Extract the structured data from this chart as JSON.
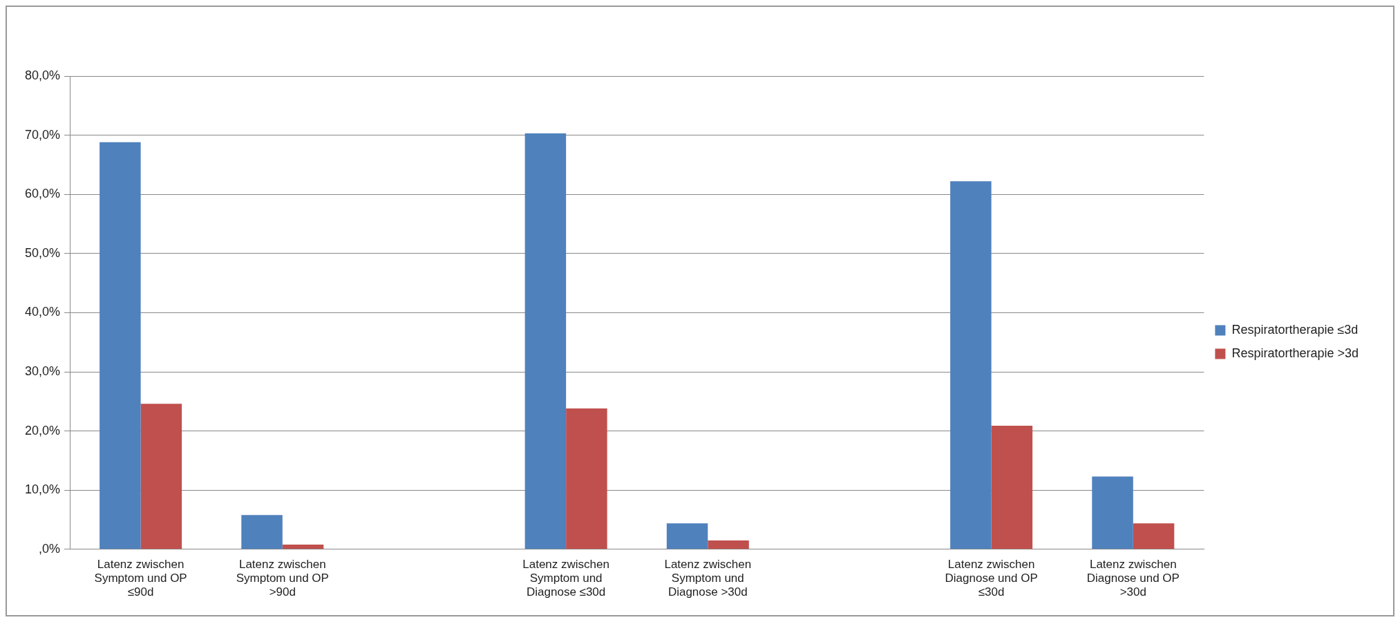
{
  "chart_data": {
    "type": "bar",
    "categories": [
      "Latenz zwischen Symptom und OP ≤90d",
      "Latenz zwischen Symptom und OP >90d",
      null,
      "Latenz zwischen Symptom und Diagnose ≤30d",
      "Latenz zwischen Symptom und Diagnose >30d",
      null,
      "Latenz zwischen Diagnose und OP ≤30d",
      "Latenz zwischen Diagnose und OP >30d"
    ],
    "series": [
      {
        "name": "Respiratortherapie ≤3d",
        "color": "#4f81bd",
        "values": [
          68.8,
          5.8,
          null,
          70.3,
          4.4,
          null,
          62.2,
          12.3
        ]
      },
      {
        "name": "Respiratortherapie >3d",
        "color": "#c0504d",
        "values": [
          24.6,
          0.8,
          null,
          23.8,
          1.5,
          null,
          20.9,
          4.4
        ]
      }
    ],
    "ylim": [
      0,
      80
    ],
    "yticks": [
      {
        "value": 0,
        "label": ",0%"
      },
      {
        "value": 10,
        "label": "10,0%"
      },
      {
        "value": 20,
        "label": "20,0%"
      },
      {
        "value": 30,
        "label": "30,0%"
      },
      {
        "value": 40,
        "label": "40,0%"
      },
      {
        "value": 50,
        "label": "50,0%"
      },
      {
        "value": 60,
        "label": "60,0%"
      },
      {
        "value": 70,
        "label": "70,0%"
      },
      {
        "value": 80,
        "label": "80,0%"
      }
    ],
    "grid": "y",
    "legend": "right"
  }
}
